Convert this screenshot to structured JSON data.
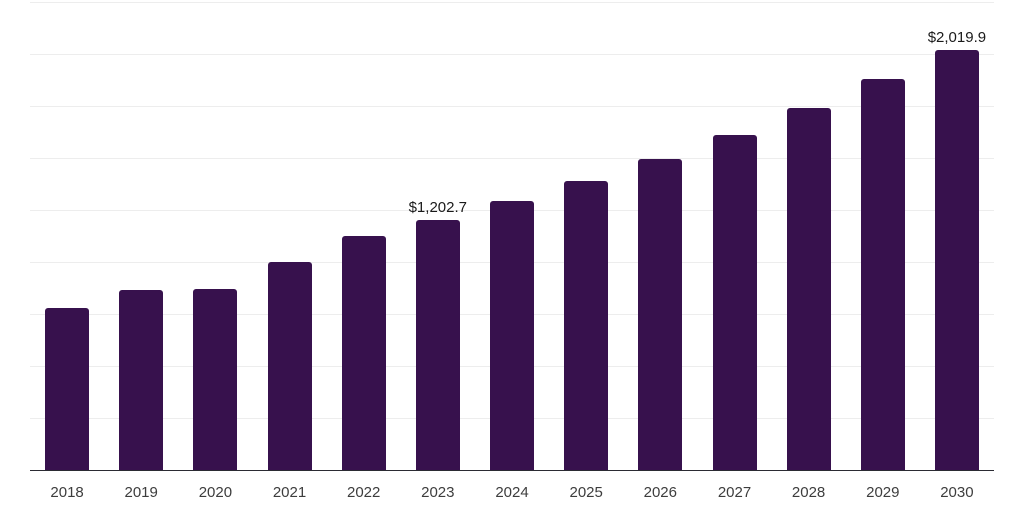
{
  "chart_data": {
    "type": "bar",
    "title": "",
    "xlabel": "",
    "ylabel": "",
    "categories": [
      "2018",
      "2019",
      "2020",
      "2021",
      "2022",
      "2023",
      "2024",
      "2025",
      "2026",
      "2027",
      "2028",
      "2029",
      "2030"
    ],
    "values": [
      780,
      865,
      870,
      1000,
      1125,
      1202.7,
      1295,
      1390,
      1495,
      1610,
      1740,
      1880,
      2019.9
    ],
    "data_labels": [
      "",
      "",
      "",
      "",
      "",
      "$1,202.7",
      "",
      "",
      "",
      "",
      "",
      "",
      "$2,019.9"
    ],
    "value_prefix": "$",
    "ylim": [
      0,
      2250
    ],
    "grid_step": 250,
    "grid": "horizontal",
    "legend": "none",
    "bar_color": "#37114D"
  },
  "style": {
    "background_color": "#ffffff",
    "bar_color": "#37114D",
    "gridline_color": "#ededed",
    "axis_line_color": "#2b2b33",
    "tick_label_color": "#3d3d3d",
    "data_label_color": "#1a1a1a"
  },
  "layout_text": {}
}
